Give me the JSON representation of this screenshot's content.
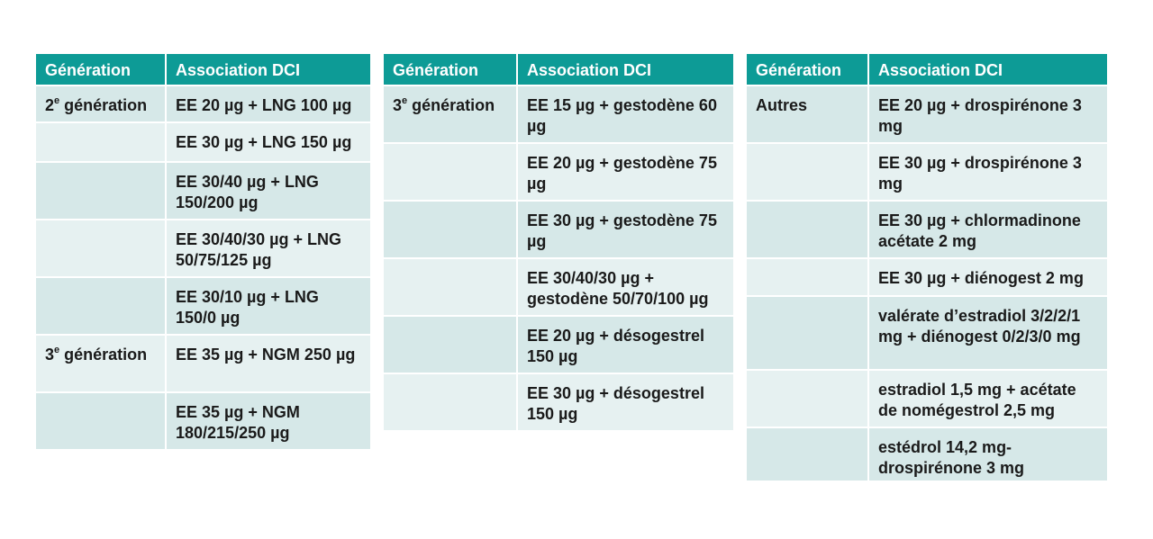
{
  "tables": [
    {
      "headers": [
        "Génération",
        "Association DCI"
      ],
      "rows": [
        {
          "gen_num": "2",
          "gen_sup": "e",
          "gen_text": " génération",
          "dci": "EE 20 µg + LNG 100 µg"
        },
        {
          "gen_num": "",
          "gen_sup": "",
          "gen_text": "",
          "dci": "EE 30 µg + LNG 150 µg"
        },
        {
          "gen_num": "",
          "gen_sup": "",
          "gen_text": "",
          "dci": "EE 30/40 µg + LNG 150/200 µg"
        },
        {
          "gen_num": "",
          "gen_sup": "",
          "gen_text": "",
          "dci": "EE 30/40/30 µg + LNG 50/75/125 µg"
        },
        {
          "gen_num": "",
          "gen_sup": "",
          "gen_text": "",
          "dci": "EE 30/10 µg + LNG 150/0 µg"
        },
        {
          "gen_num": "3",
          "gen_sup": "e",
          "gen_text": " génération",
          "dci": "EE 35 µg + NGM 250 µg"
        },
        {
          "gen_num": "",
          "gen_sup": "",
          "gen_text": "",
          "dci": "EE 35 µg + NGM 180/215/250 µg"
        }
      ]
    },
    {
      "headers": [
        "Génération",
        "Association DCI"
      ],
      "rows": [
        {
          "gen_num": "3",
          "gen_sup": "e",
          "gen_text": " génération",
          "dci": "EE 15 µg + gestodène 60 µg"
        },
        {
          "gen_num": "",
          "gen_sup": "",
          "gen_text": "",
          "dci": "EE 20 µg + gestodène 75 µg"
        },
        {
          "gen_num": "",
          "gen_sup": "",
          "gen_text": "",
          "dci": "EE 30 µg + gestodène 75 µg"
        },
        {
          "gen_num": "",
          "gen_sup": "",
          "gen_text": "",
          "dci": "EE 30/40/30 µg + gestodène 50/70/100 µg"
        },
        {
          "gen_num": "",
          "gen_sup": "",
          "gen_text": "",
          "dci": "EE 20 µg + désogestrel 150 µg"
        },
        {
          "gen_num": "",
          "gen_sup": "",
          "gen_text": "",
          "dci": "EE 30 µg + désogestrel 150 µg"
        }
      ]
    },
    {
      "headers": [
        "Génération",
        "Association DCI"
      ],
      "rows": [
        {
          "gen_num": "",
          "gen_sup": "",
          "gen_text": "Autres",
          "dci": "EE 20 µg + drospirénone 3 mg"
        },
        {
          "gen_num": "",
          "gen_sup": "",
          "gen_text": "",
          "dci": "EE 30 µg + drospirénone 3 mg"
        },
        {
          "gen_num": "",
          "gen_sup": "",
          "gen_text": "",
          "dci": "EE 30 µg + chlormadinone acétate 2 mg"
        },
        {
          "gen_num": "",
          "gen_sup": "",
          "gen_text": "",
          "dci": "EE 30 µg + diénogest 2 mg"
        },
        {
          "gen_num": "",
          "gen_sup": "",
          "gen_text": "",
          "dci": "valérate d’estradiol 3/2/2/1 mg + diénogest 0/2/3/0 mg"
        },
        {
          "gen_num": "",
          "gen_sup": "",
          "gen_text": "",
          "dci": "estradiol 1,5 mg + acétate de nomégestrol 2,5 mg"
        },
        {
          "gen_num": "",
          "gen_sup": "",
          "gen_text": "",
          "dci": "estédrol 14,2 mg-drospirénone 3 mg"
        }
      ]
    }
  ],
  "colors": {
    "header_bg": "#0d9b96",
    "row_dark": "#d6e8e8",
    "row_light": "#e6f1f1"
  }
}
